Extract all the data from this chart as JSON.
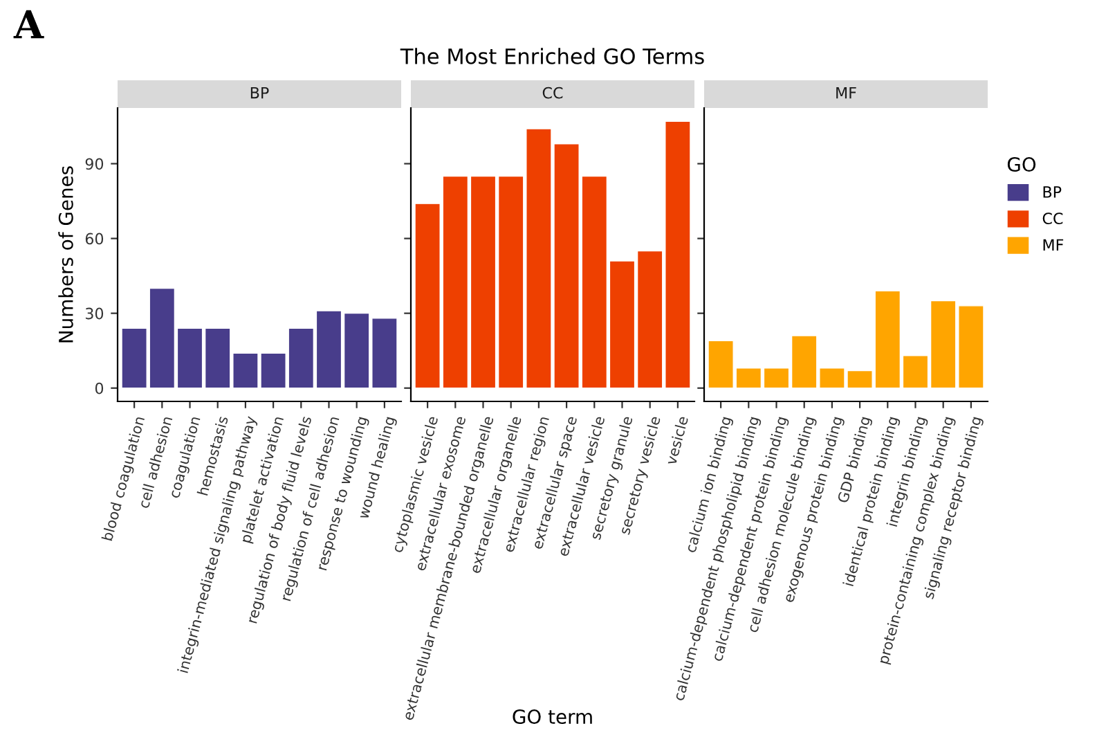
{
  "chart_data": [
    {
      "type": "bar",
      "subtitle": "BP",
      "ylabel": "Numbers of Genes",
      "annotations": [
        "A"
      ],
      "categories": [
        "blood coagulation",
        "cell adhesion",
        "coagulation",
        "hemostasis",
        "integrin-mediated signaling pathway",
        "platelet activation",
        "regulation of body fluid levels",
        "regulation of cell adhesion",
        "response to wounding",
        "wound healing"
      ],
      "series": [
        {
          "name": "BP",
          "color": "#483d8b",
          "values": [
            24,
            40,
            24,
            24,
            14,
            14,
            24,
            31,
            30,
            28
          ]
        }
      ],
      "ylim": [
        -5.35,
        112.35
      ],
      "yticks": [
        0,
        30,
        60,
        90
      ],
      "grid": false
    },
    {
      "type": "bar",
      "title": "The Most Enriched GO Terms",
      "subtitle": "CC",
      "xlabel": "GO term",
      "categories": [
        "cytoplasmic vesicle",
        "extracellular exosome",
        "extracellular membrane-bounded organelle",
        "extracellular organelle",
        "extracellular region",
        "extracellular space",
        "extracellular vesicle",
        "secretory granule",
        "secretory vesicle",
        "vesicle"
      ],
      "series": [
        {
          "name": "CC",
          "color": "#ee4000",
          "values": [
            74,
            85,
            85,
            85,
            104,
            98,
            85,
            51,
            55,
            107
          ]
        }
      ],
      "ylim": [
        -5.35,
        112.35
      ],
      "yticks": [
        0,
        30,
        60,
        90
      ],
      "tick_labels": "x",
      "grid": false
    },
    {
      "type": "bar",
      "subtitle": "MF",
      "legend_title": "GO",
      "legend": "right",
      "categories": [
        "calcium ion binding",
        "calcium-dependent phospholipid binding",
        "calcium-dependent protein binding",
        "cell adhesion molecule binding",
        "exogenous protein binding",
        "GDP binding",
        "identical protein binding",
        "integrin binding",
        "protein-containing complex binding",
        "signaling receptor binding"
      ],
      "series": [
        {
          "name": "MF",
          "color": "#ffa500",
          "values": [
            19,
            8,
            8,
            21,
            8,
            7,
            39,
            13,
            35,
            33
          ]
        }
      ],
      "ylim": [
        -5.35,
        112.35
      ],
      "yticks": [
        0,
        30,
        60,
        90
      ],
      "tick_labels": "x",
      "grid": false
    }
  ]
}
